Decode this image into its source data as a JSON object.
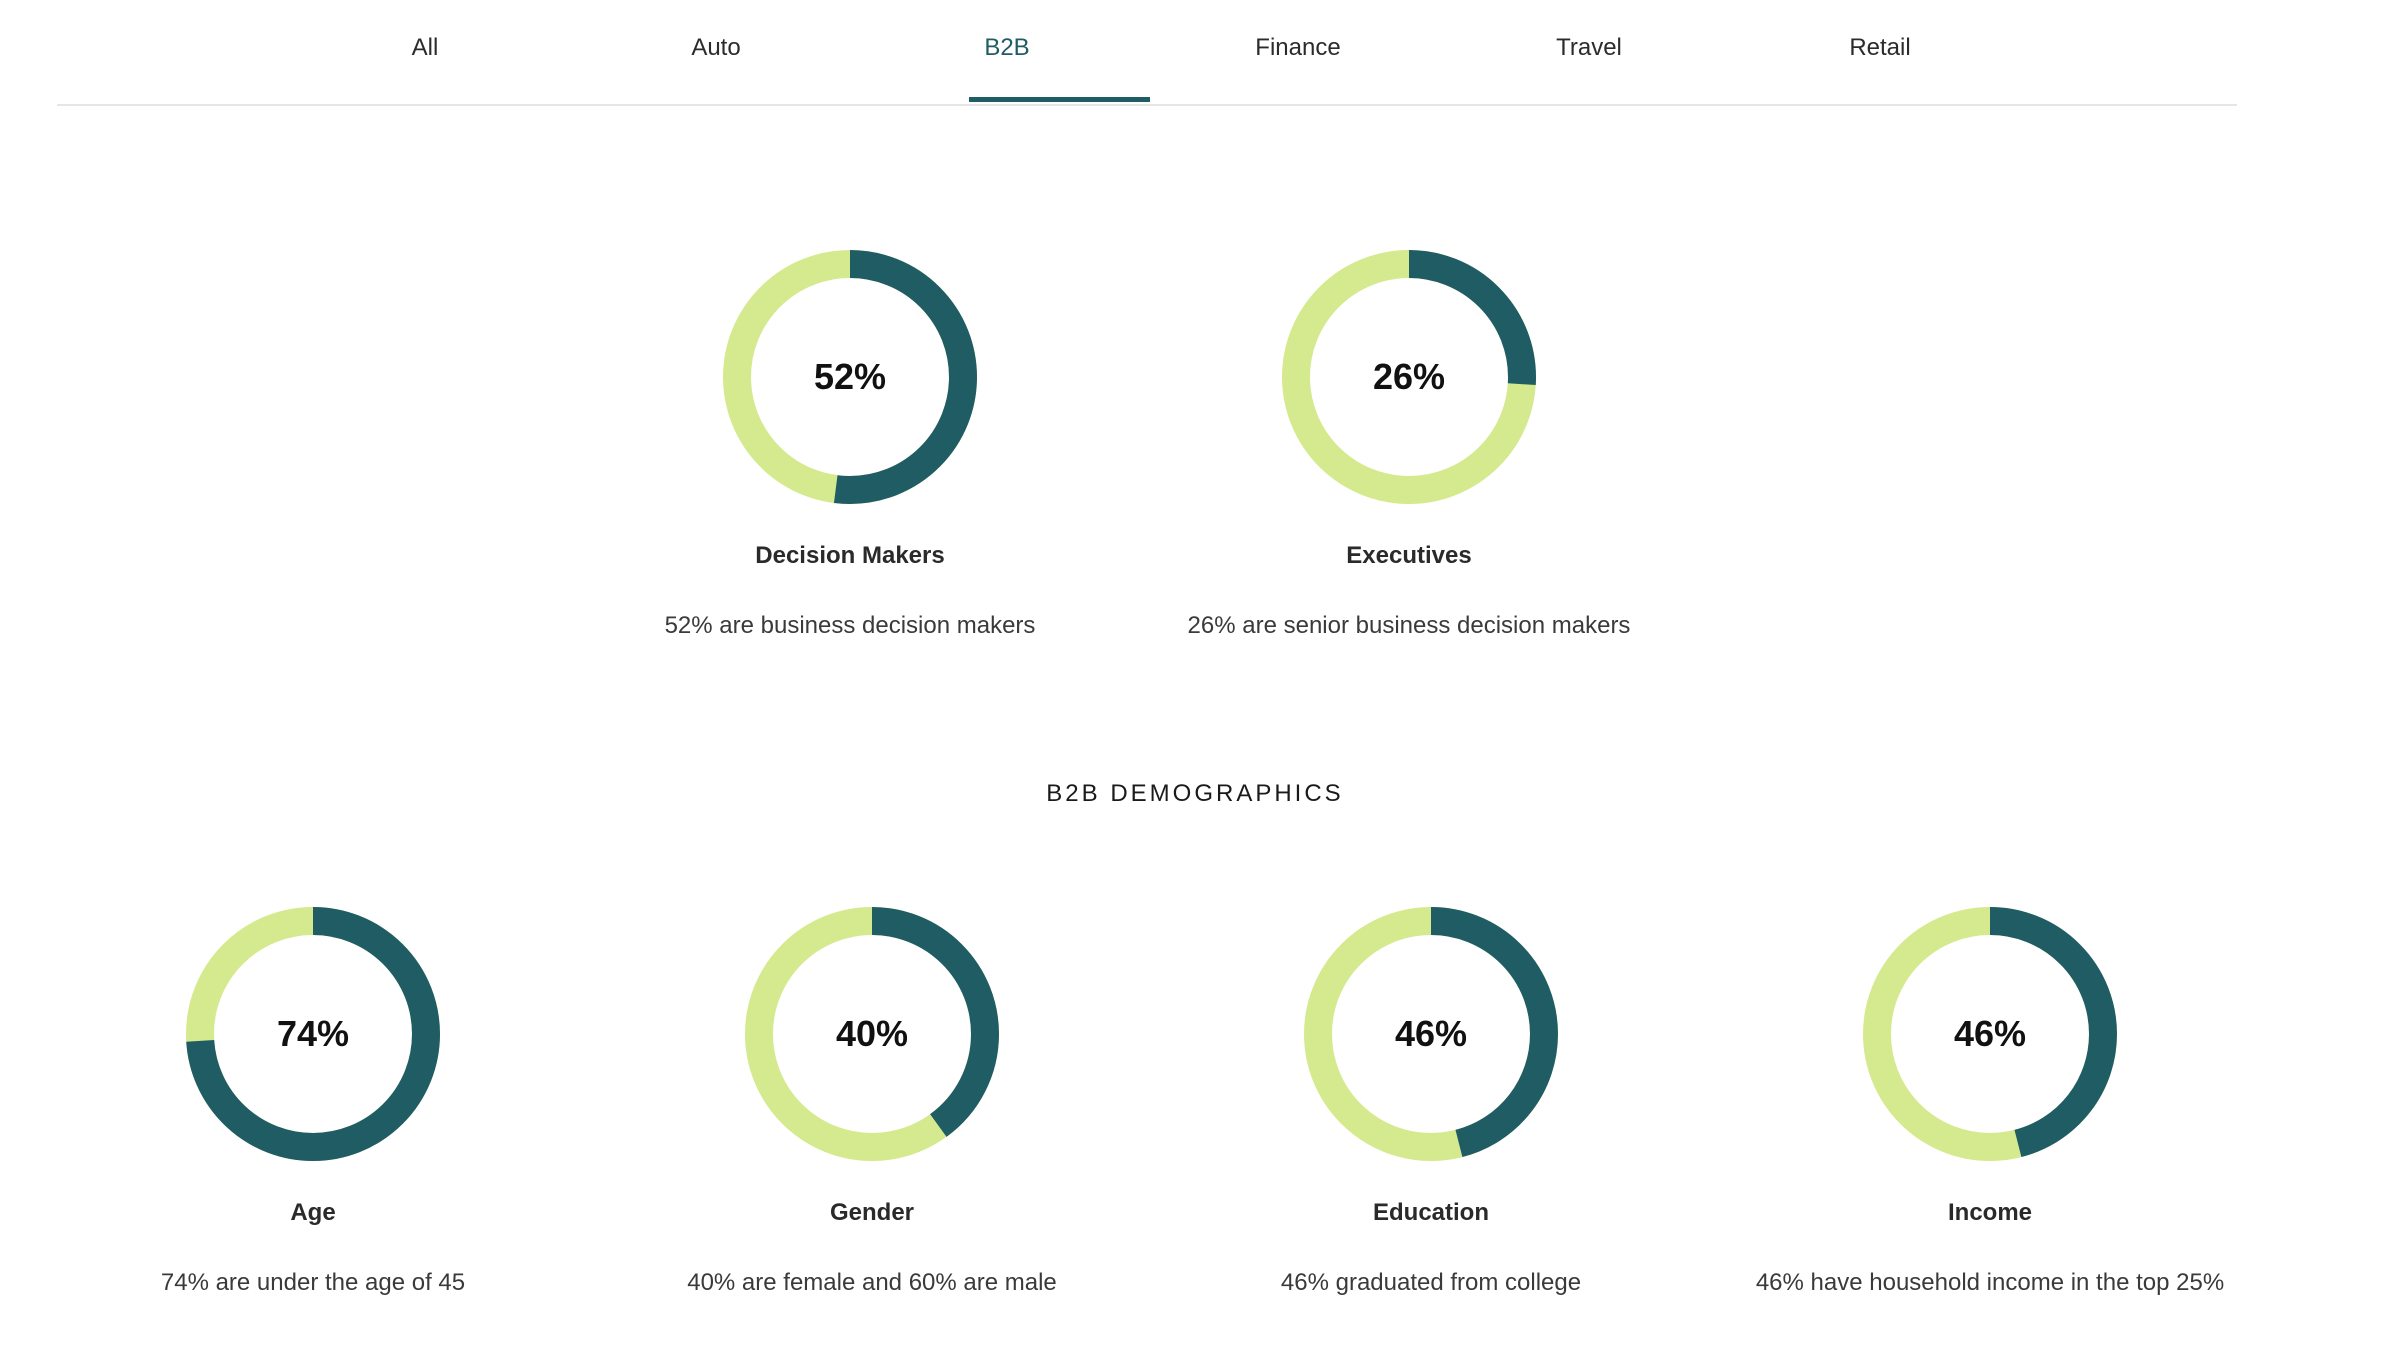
{
  "tabs": [
    {
      "label": "All"
    },
    {
      "label": "Auto"
    },
    {
      "label": "B2B"
    },
    {
      "label": "Finance"
    },
    {
      "label": "Travel"
    },
    {
      "label": "Retail"
    }
  ],
  "active_tab": "B2B",
  "colors": {
    "accent": "#1f5c63",
    "track": "#d5ea8e"
  },
  "top_stats": [
    {
      "percent_value": 52,
      "percent_label": "52%",
      "title": "Decision Makers",
      "description": "52% are business decision makers"
    },
    {
      "percent_value": 26,
      "percent_label": "26%",
      "title": "Executives",
      "description": "26% are senior business decision makers"
    }
  ],
  "demographics": {
    "title": "B2B DEMOGRAPHICS",
    "stats": [
      {
        "percent_value": 74,
        "percent_label": "74%",
        "title": "Age",
        "description": "74% are under the age of 45"
      },
      {
        "percent_value": 40,
        "percent_label": "40%",
        "title": "Gender",
        "description": "40% are female and 60% are male"
      },
      {
        "percent_value": 46,
        "percent_label": "46%",
        "title": "Education",
        "description": "46% graduated from college"
      },
      {
        "percent_value": 46,
        "percent_label": "46%",
        "title": "Income",
        "description": "46% have household income in the top 25%"
      }
    ]
  }
}
